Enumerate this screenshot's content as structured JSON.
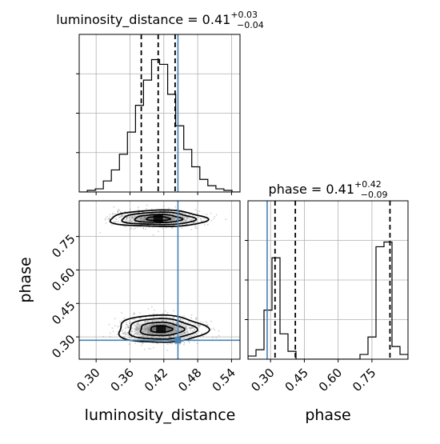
{
  "chart_data": {
    "type": "corner",
    "parameters": [
      "luminosity_distance",
      "phase"
    ],
    "truths": {
      "luminosity_distance": 0.445,
      "phase": 0.285
    },
    "panels": [
      {
        "id": "luminosity_distance-1d",
        "type": "histogram-1d",
        "title": {
          "base": "luminosity_distance = 0.41",
          "sup": "+0.03",
          "sub": "−0.04"
        },
        "xlim": [
          0.27,
          0.555
        ],
        "ylim": [
          0,
          1.0
        ],
        "quantiles": [
          0.38,
          0.41,
          0.44
        ],
        "truth": 0.445,
        "grid": true,
        "bin_edges": [
          0.27,
          0.2843,
          0.2985,
          0.3128,
          0.327,
          0.3413,
          0.3555,
          0.3698,
          0.384,
          0.3983,
          0.4125,
          0.4268,
          0.441,
          0.4553,
          0.4695,
          0.4838,
          0.498,
          0.5123,
          0.5265,
          0.5408,
          0.555
        ],
        "counts": [
          0.0,
          0.01,
          0.02,
          0.07,
          0.14,
          0.24,
          0.38,
          0.55,
          0.71,
          0.84,
          0.81,
          0.62,
          0.42,
          0.27,
          0.16,
          0.08,
          0.04,
          0.02,
          0.01,
          0.0
        ]
      },
      {
        "id": "phase-1d",
        "type": "histogram-1d",
        "title": {
          "base": "phase = 0.41",
          "sup": "+0.42",
          "sub": "−0.09"
        },
        "xlim": [
          0.2,
          0.91
        ],
        "ylim": [
          0,
          1.0
        ],
        "quantiles": [
          0.32,
          0.41,
          0.83
        ],
        "truth": 0.285,
        "grid": true,
        "bin_edges": [
          0.2,
          0.2355,
          0.271,
          0.3065,
          0.342,
          0.3775,
          0.413,
          0.4485,
          0.484,
          0.5195,
          0.555,
          0.5905,
          0.626,
          0.6615,
          0.697,
          0.7325,
          0.768,
          0.8035,
          0.839,
          0.8745,
          0.91
        ],
        "counts": [
          0.02,
          0.06,
          0.31,
          0.64,
          0.16,
          0.05,
          0.0,
          0.0,
          0.0,
          0.0,
          0.0,
          0.0,
          0.0,
          0.0,
          0.03,
          0.14,
          0.71,
          0.74,
          0.08,
          0.03
        ]
      },
      {
        "id": "luminosity_distance-phase-2d",
        "type": "density-2d",
        "xlim": [
          0.27,
          0.555
        ],
        "ylim": [
          0.2,
          0.91
        ],
        "truth": {
          "x": 0.445,
          "y": 0.285
        },
        "grid": true,
        "modes": [
          {
            "center": [
              0.41,
              0.83
            ],
            "spread": [
              0.038,
              0.018
            ]
          },
          {
            "center": [
              0.415,
              0.335
            ],
            "spread": [
              0.035,
              0.03
            ]
          }
        ]
      }
    ],
    "axes": {
      "luminosity_distance": {
        "label": "luminosity_distance",
        "ticks": [
          "0.30",
          "0.36",
          "0.42",
          "0.48",
          "0.54"
        ],
        "tick_values": [
          0.3,
          0.36,
          0.42,
          0.48,
          0.54
        ]
      },
      "phase": {
        "label": "phase",
        "ticks": [
          "0.30",
          "0.45",
          "0.60",
          "0.75"
        ],
        "tick_values": [
          0.3,
          0.45,
          0.6,
          0.75
        ]
      }
    },
    "colors": {
      "hist": "#000000",
      "quantile": "#000000",
      "truth": "#4682b4",
      "grid": "#b0b0b0",
      "density": "#000000"
    }
  }
}
